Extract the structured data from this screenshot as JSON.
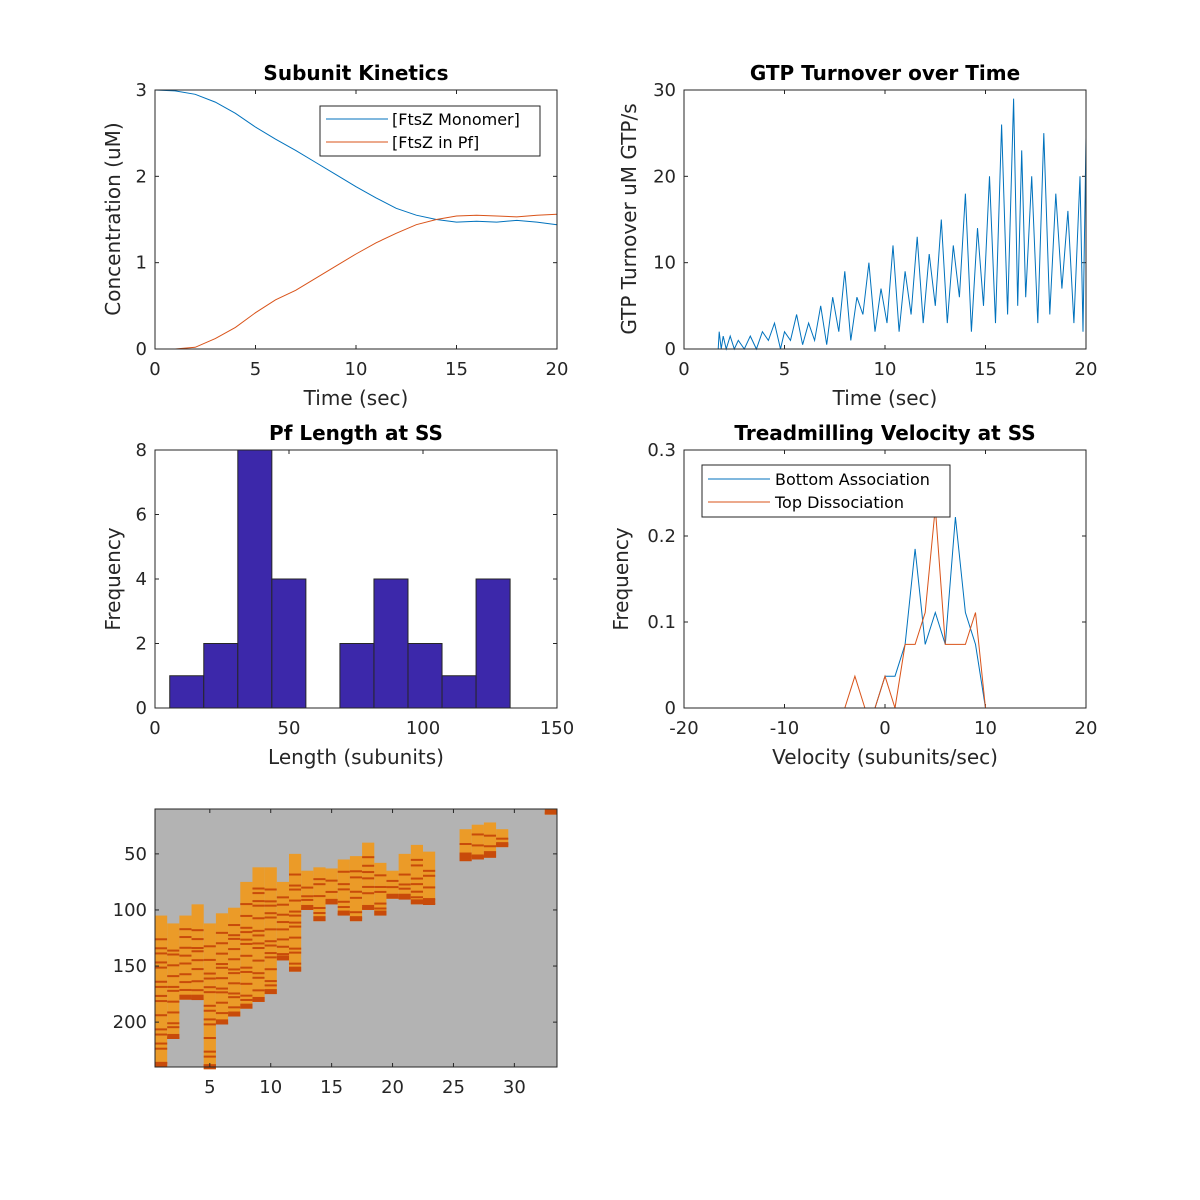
{
  "colors": {
    "blue": "#0072BD",
    "orange": "#D95319",
    "bar": "#3C28AA",
    "raster_bg": "#B3B3B3",
    "raster_fill": "#EB9B28",
    "raster_mark": "#C84B0A"
  },
  "chart_data": [
    {
      "id": "kinetics",
      "type": "line",
      "title": "Subunit Kinetics",
      "xlabel": "Time (sec)",
      "ylabel": "Concentration (uM)",
      "xlim": [
        0,
        20
      ],
      "ylim": [
        0,
        3
      ],
      "xticks": [
        0,
        5,
        10,
        15,
        20
      ],
      "yticks": [
        0,
        1,
        2,
        3
      ],
      "legend": "top-right",
      "series": [
        {
          "name": "[FtsZ Monomer]",
          "color": "#0072BD",
          "x": [
            0,
            1,
            2,
            3,
            4,
            5,
            6,
            7,
            8,
            9,
            10,
            11,
            12,
            13,
            14,
            15,
            16,
            17,
            18,
            19,
            20
          ],
          "y": [
            3.0,
            2.99,
            2.95,
            2.86,
            2.73,
            2.57,
            2.43,
            2.3,
            2.16,
            2.02,
            1.88,
            1.75,
            1.63,
            1.55,
            1.5,
            1.47,
            1.48,
            1.47,
            1.49,
            1.47,
            1.44
          ]
        },
        {
          "name": "[FtsZ in Pf]",
          "color": "#D95319",
          "x": [
            0,
            1,
            2,
            3,
            4,
            5,
            6,
            7,
            8,
            9,
            10,
            11,
            12,
            13,
            14,
            15,
            16,
            17,
            18,
            19,
            20
          ],
          "y": [
            0.0,
            0.0,
            0.02,
            0.12,
            0.25,
            0.42,
            0.57,
            0.68,
            0.82,
            0.96,
            1.1,
            1.23,
            1.34,
            1.44,
            1.5,
            1.54,
            1.55,
            1.54,
            1.53,
            1.55,
            1.56
          ]
        }
      ]
    },
    {
      "id": "gtp",
      "type": "line",
      "title": "GTP Turnover over Time",
      "xlabel": "Time (sec)",
      "ylabel": "GTP Turnover uM GTP/s",
      "xlim": [
        0,
        20
      ],
      "ylim": [
        0,
        30
      ],
      "xticks": [
        0,
        5,
        10,
        15,
        20
      ],
      "yticks": [
        0,
        10,
        20,
        30
      ],
      "series": [
        {
          "color": "#0072BD",
          "x": [
            0,
            1,
            1.5,
            1.7,
            1.75,
            1.85,
            1.95,
            2.1,
            2.3,
            2.5,
            2.7,
            3.0,
            3.3,
            3.6,
            3.9,
            4.2,
            4.5,
            4.8,
            5.0,
            5.3,
            5.6,
            5.9,
            6.2,
            6.5,
            6.8,
            7.1,
            7.4,
            7.7,
            8.0,
            8.3,
            8.6,
            8.9,
            9.2,
            9.5,
            9.8,
            10.1,
            10.4,
            10.7,
            11.0,
            11.3,
            11.6,
            11.9,
            12.2,
            12.5,
            12.8,
            13.1,
            13.4,
            13.7,
            14.0,
            14.3,
            14.6,
            14.9,
            15.2,
            15.5,
            15.8,
            16.1,
            16.4,
            16.6,
            16.8,
            17.0,
            17.3,
            17.6,
            17.9,
            18.2,
            18.5,
            18.8,
            19.1,
            19.4,
            19.7,
            19.85,
            20.0
          ],
          "y": [
            0,
            0,
            0,
            0,
            2,
            0,
            1.5,
            0,
            1.5,
            0,
            1,
            0,
            1.5,
            0,
            2,
            1,
            3,
            0,
            2,
            1,
            4,
            0.5,
            3,
            1,
            5,
            0.5,
            6,
            2,
            9,
            1,
            6,
            4,
            10,
            2,
            7,
            3,
            12,
            2,
            9,
            4,
            13,
            3,
            11,
            5,
            15,
            3,
            12,
            6,
            18,
            2,
            14,
            5,
            20,
            3,
            26,
            4,
            29,
            5,
            23,
            6,
            20,
            3,
            25,
            4,
            18,
            7,
            16,
            3,
            20,
            2,
            24.5
          ]
        }
      ]
    },
    {
      "id": "pflength",
      "type": "bar",
      "title": "Pf Length at SS",
      "xlabel": "Length (subunits)",
      "ylabel": "Frequency",
      "xlim": [
        0,
        150
      ],
      "ylim": [
        0,
        8
      ],
      "xticks": [
        0,
        50,
        100,
        150
      ],
      "yticks": [
        0,
        2,
        4,
        6,
        8
      ],
      "bin_edges": [
        5.5,
        18.2,
        30.9,
        43.6,
        56.3,
        69.0,
        81.7,
        94.4,
        107.1,
        119.8,
        132.5
      ],
      "values": [
        1,
        2,
        8,
        4,
        0,
        2,
        4,
        2,
        1,
        4
      ]
    },
    {
      "id": "treadmill",
      "type": "line",
      "title": "Treadmilling Velocity at SS",
      "xlabel": "Velocity (subunits/sec)",
      "ylabel": "Frequency",
      "xlim": [
        -20,
        20
      ],
      "ylim": [
        0,
        0.3
      ],
      "xticks": [
        -20,
        -10,
        0,
        10,
        20
      ],
      "yticks": [
        0,
        0.1,
        0.2,
        0.3
      ],
      "legend": "top-left",
      "series": [
        {
          "name": "Bottom Association",
          "color": "#0072BD",
          "x": [
            -5,
            -3,
            -2,
            -1,
            0,
            1,
            2,
            3,
            4,
            5,
            6,
            7,
            8,
            9,
            10,
            12
          ],
          "y": [
            0,
            0,
            0,
            0,
            0.037,
            0.037,
            0.074,
            0.185,
            0.074,
            0.111,
            0.074,
            0.222,
            0.111,
            0.074,
            0,
            0
          ]
        },
        {
          "name": "Top Dissociation",
          "color": "#D95319",
          "x": [
            -15,
            -5,
            -4,
            -3,
            -2,
            -1,
            0,
            1,
            2,
            3,
            4,
            5,
            6,
            7,
            8,
            9,
            10,
            14
          ],
          "y": [
            0,
            0,
            0,
            0.037,
            0,
            0,
            0.037,
            0,
            0.074,
            0.074,
            0.111,
            0.233,
            0.074,
            0.074,
            0.074,
            0.111,
            0,
            0
          ]
        }
      ]
    },
    {
      "id": "raster",
      "type": "heatmap",
      "xlim": [
        0.5,
        33.5
      ],
      "ylim": [
        10,
        240
      ],
      "xticks": [
        5,
        10,
        15,
        20,
        25,
        30
      ],
      "yticks": [
        50,
        100,
        150,
        200
      ],
      "columns": {
        "x": [
          1,
          2,
          3,
          4,
          5,
          6,
          7,
          8,
          9,
          10,
          11,
          12,
          13,
          14,
          15,
          16,
          17,
          18,
          19,
          20,
          21,
          22,
          23,
          26,
          27,
          28,
          29,
          33
        ],
        "top": [
          105,
          112,
          105,
          95,
          112,
          103,
          98,
          75,
          62,
          62,
          75,
          50,
          65,
          62,
          63,
          55,
          52,
          40,
          58,
          65,
          50,
          42,
          48,
          28,
          24,
          22,
          28,
          10
        ],
        "bottom": [
          240,
          215,
          180,
          180,
          242,
          202,
          195,
          188,
          182,
          175,
          145,
          155,
          100,
          110,
          95,
          105,
          110,
          100,
          105,
          90,
          90,
          95,
          95,
          55,
          55,
          52,
          44,
          15
        ]
      }
    }
  ]
}
